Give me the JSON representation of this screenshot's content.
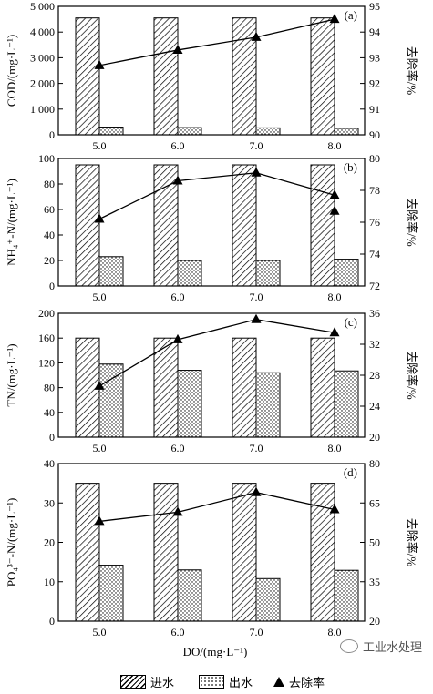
{
  "chart_data": [
    {
      "type": "bar+line",
      "panel_tag": "(a)",
      "ylabel": "COD/(mg·L⁻¹)",
      "y2label": "去除率/%",
      "categories": [
        "5.0",
        "6.0",
        "7.0",
        "8.0"
      ],
      "ylim": [
        0,
        5000
      ],
      "yticks": [
        "0",
        "1 000",
        "2 000",
        "3 000",
        "4 000",
        "5 000"
      ],
      "y2lim": [
        90,
        95
      ],
      "y2ticks": [
        "90",
        "91",
        "92",
        "93",
        "94",
        "95"
      ],
      "series": [
        {
          "name": "进水",
          "kind": "bar",
          "values": [
            4550,
            4550,
            4550,
            4550
          ]
        },
        {
          "name": "出水",
          "kind": "bar",
          "values": [
            300,
            280,
            270,
            250
          ]
        },
        {
          "name": "去除率",
          "kind": "line",
          "axis": "right",
          "values": [
            92.7,
            93.3,
            93.8,
            94.5
          ]
        }
      ]
    },
    {
      "type": "bar+line",
      "panel_tag": "(b)",
      "ylabel": "NH₄⁺-N/(mg·L⁻¹)",
      "y2label": "去除率/%",
      "categories": [
        "5.0",
        "6.0",
        "7.0",
        "8.0"
      ],
      "ylim": [
        0,
        100
      ],
      "yticks": [
        "0",
        "20",
        "40",
        "60",
        "80",
        "100"
      ],
      "y2lim": [
        72,
        80
      ],
      "y2ticks": [
        "72",
        "74",
        "76",
        "78",
        "80"
      ],
      "series": [
        {
          "name": "进水",
          "kind": "bar",
          "values": [
            95,
            95,
            95,
            95
          ]
        },
        {
          "name": "出水",
          "kind": "bar",
          "values": [
            23,
            20,
            20,
            21
          ]
        },
        {
          "name": "去除率",
          "kind": "line",
          "axis": "right",
          "values": [
            76.2,
            78.6,
            79.1,
            77.7
          ]
        },
        {
          "name": "去除率",
          "kind": "marker",
          "axis": "right",
          "values": [
            null,
            null,
            null,
            76.7
          ]
        }
      ]
    },
    {
      "type": "bar+line",
      "panel_tag": "(c)",
      "ylabel": "TN/(mg·L⁻¹)",
      "y2label": "去除率/%",
      "categories": [
        "5.0",
        "6.0",
        "7.0",
        "8.0"
      ],
      "ylim": [
        0,
        200
      ],
      "yticks": [
        "0",
        "40",
        "80",
        "120",
        "160",
        "200"
      ],
      "y2lim": [
        20,
        36
      ],
      "y2ticks": [
        "20",
        "24",
        "28",
        "32",
        "36"
      ],
      "series": [
        {
          "name": "进水",
          "kind": "bar",
          "values": [
            160,
            160,
            160,
            160
          ]
        },
        {
          "name": "出水",
          "kind": "bar",
          "values": [
            118,
            108,
            104,
            107
          ]
        },
        {
          "name": "去除率",
          "kind": "line",
          "axis": "right",
          "values": [
            26.6,
            32.6,
            35.2,
            33.5
          ]
        }
      ]
    },
    {
      "type": "bar+line",
      "panel_tag": "(d)",
      "ylabel": "PO₄³⁻-N/(mg·L⁻¹)",
      "y2label": "去除率/%",
      "xlabel": "DO/(mg·L⁻¹)",
      "categories": [
        "5.0",
        "6.0",
        "7.0",
        "8.0"
      ],
      "ylim": [
        0,
        40
      ],
      "yticks": [
        "0",
        "10",
        "20",
        "30",
        "40"
      ],
      "y2lim": [
        20,
        80
      ],
      "y2ticks": [
        "20",
        "35",
        "50",
        "65",
        "80"
      ],
      "series": [
        {
          "name": "进水",
          "kind": "bar",
          "values": [
            35,
            35,
            35,
            35
          ]
        },
        {
          "name": "出水",
          "kind": "bar",
          "values": [
            14.2,
            13,
            10.8,
            12.9
          ]
        },
        {
          "name": "去除率",
          "kind": "line",
          "axis": "right",
          "values": [
            58,
            61.5,
            69,
            62.5
          ]
        }
      ]
    }
  ],
  "legend": {
    "influent": "进水",
    "effluent": "出水",
    "removal": "去除率"
  },
  "watermark": "工业水处理"
}
